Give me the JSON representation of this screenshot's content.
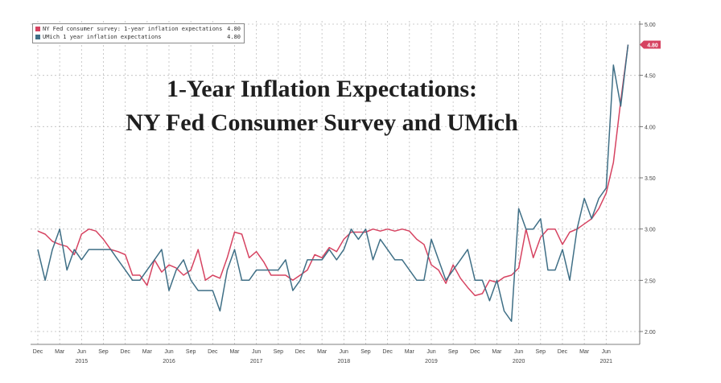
{
  "colors": {
    "ny_fed": "#d64361",
    "umich": "#3f6f86",
    "grid": "#bdbdbd",
    "axis": "#555555",
    "badge_text": "#ffffff"
  },
  "chart_data": {
    "type": "line",
    "title_line1": "1-Year Inflation Expectations:",
    "title_line2": "NY Fed Consumer Survey and UMich",
    "xlabel": "",
    "ylabel": "",
    "ylim": [
      1.9,
      5.05
    ],
    "y_ticks": [
      "5.00",
      "4.50",
      "4.00",
      "3.50",
      "3.00",
      "2.50",
      "2.00"
    ],
    "x_ticks": [
      "Dec",
      "Mar",
      "Jun",
      "Sep",
      "Dec",
      "Mar",
      "Jun",
      "Sep",
      "Dec",
      "Mar",
      "Jun",
      "Sep",
      "Dec",
      "Mar",
      "Jun",
      "Sep",
      "Dec",
      "Mar",
      "Jun",
      "Sep",
      "Dec",
      "Mar",
      "Jun",
      "Sep",
      "Dec",
      "Mar",
      "Jun"
    ],
    "year_labels": [
      {
        "label": "2015",
        "month_index": 6
      },
      {
        "label": "2016",
        "month_index": 18
      },
      {
        "label": "2017",
        "month_index": 30
      },
      {
        "label": "2018",
        "month_index": 42
      },
      {
        "label": "2019",
        "month_index": 54
      },
      {
        "label": "2020",
        "month_index": 66
      },
      {
        "label": "2021",
        "month_index": 78
      }
    ],
    "x_start": "Dec 2014",
    "last_value_badge": "4.80",
    "series": [
      {
        "name": "NY Fed consumer survey: 1-year inflation expectations",
        "legend_value": "4.80",
        "color_key": "ny_fed",
        "values": [
          2.98,
          2.95,
          2.88,
          2.85,
          2.83,
          2.75,
          2.95,
          3.0,
          2.98,
          2.9,
          2.8,
          2.78,
          2.75,
          2.55,
          2.55,
          2.45,
          2.7,
          2.58,
          2.65,
          2.62,
          2.55,
          2.6,
          2.8,
          2.5,
          2.55,
          2.52,
          2.72,
          2.97,
          2.95,
          2.72,
          2.78,
          2.68,
          2.55,
          2.55,
          2.55,
          2.5,
          2.55,
          2.6,
          2.75,
          2.72,
          2.82,
          2.78,
          2.9,
          2.97,
          2.97,
          2.97,
          3.0,
          2.98,
          3.0,
          2.98,
          3.0,
          2.98,
          2.9,
          2.85,
          2.65,
          2.6,
          2.47,
          2.65,
          2.52,
          2.43,
          2.35,
          2.37,
          2.5,
          2.48,
          2.53,
          2.55,
          2.62,
          3.0,
          2.72,
          2.92,
          3.0,
          3.0,
          2.85,
          2.97,
          3.0,
          3.05,
          3.1,
          3.2,
          3.35,
          3.65,
          4.25,
          4.8
        ]
      },
      {
        "name": "UMich 1 year inflation expectations",
        "legend_value": "4.80",
        "color_key": "umich",
        "values": [
          2.8,
          2.5,
          2.8,
          3.0,
          2.6,
          2.8,
          2.7,
          2.8,
          2.8,
          2.8,
          2.8,
          2.7,
          2.6,
          2.5,
          2.5,
          2.6,
          2.7,
          2.8,
          2.4,
          2.6,
          2.7,
          2.5,
          2.4,
          2.4,
          2.4,
          2.2,
          2.6,
          2.8,
          2.5,
          2.5,
          2.6,
          2.6,
          2.6,
          2.6,
          2.7,
          2.4,
          2.5,
          2.7,
          2.7,
          2.7,
          2.8,
          2.7,
          2.8,
          3.0,
          2.9,
          3.0,
          2.7,
          2.9,
          2.8,
          2.7,
          2.7,
          2.6,
          2.5,
          2.5,
          2.9,
          2.7,
          2.5,
          2.6,
          2.7,
          2.8,
          2.5,
          2.5,
          2.3,
          2.5,
          2.2,
          2.1,
          3.2,
          3.0,
          3.0,
          3.1,
          2.6,
          2.6,
          2.8,
          2.5,
          3.0,
          3.3,
          3.1,
          3.3,
          3.4,
          4.6,
          4.2,
          4.8
        ]
      }
    ]
  }
}
